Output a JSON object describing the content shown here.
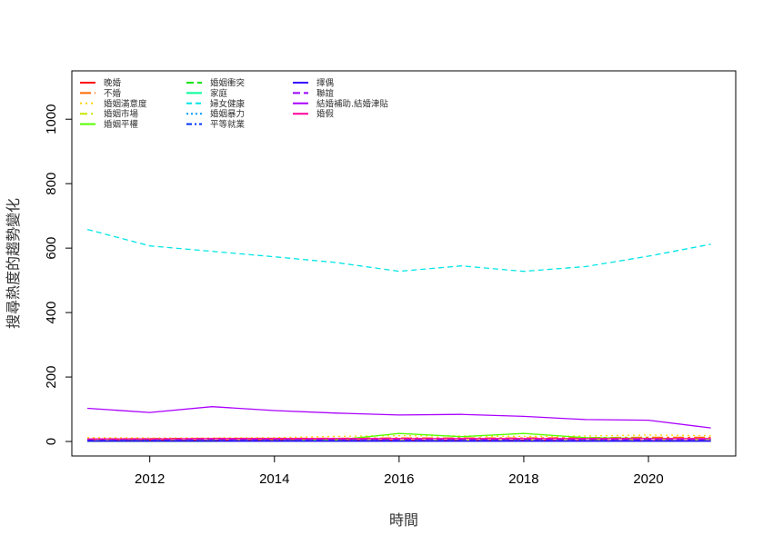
{
  "chart_data": {
    "type": "line",
    "xlabel": "時間",
    "ylabel": "搜尋熱度的趨勢變化",
    "xlim": [
      2010.75,
      2021.4
    ],
    "ylim": [
      -45,
      1150
    ],
    "x_ticks": [
      2012,
      2014,
      2016,
      2018,
      2020
    ],
    "y_ticks": [
      0,
      200,
      400,
      600,
      800,
      1000
    ],
    "x": [
      2011,
      2012,
      2013,
      2014,
      2015,
      2016,
      2017,
      2018,
      2019,
      2020,
      2021
    ],
    "legend_position": "top-left",
    "grid": false,
    "series": [
      {
        "name": "晚婚",
        "color": "#FF0000",
        "dash": "solid",
        "values": [
          3,
          4,
          4,
          5,
          5,
          4,
          4,
          4,
          3,
          3,
          3
        ]
      },
      {
        "name": "不婚",
        "color": "#FF6A00",
        "dash": "12,4,3,4",
        "values": [
          8,
          9,
          10,
          10,
          10,
          11,
          11,
          11,
          12,
          13,
          13
        ]
      },
      {
        "name": "婚姻滿意度",
        "color": "#FFD400",
        "dash": "2,4",
        "values": [
          12,
          11,
          11,
          12,
          16,
          18,
          17,
          16,
          17,
          20,
          18
        ]
      },
      {
        "name": "婚姻市場",
        "color": "#C8E600",
        "dash": "8,4,2,4",
        "values": [
          2,
          3,
          3,
          3,
          4,
          4,
          4,
          4,
          5,
          5,
          5
        ]
      },
      {
        "name": "婚姻平權",
        "color": "#55FF00",
        "dash": "solid",
        "values": [
          0,
          0,
          0,
          2,
          5,
          25,
          15,
          25,
          12,
          10,
          8
        ]
      },
      {
        "name": "婚姻衝突",
        "color": "#00E600",
        "dash": "8,4",
        "values": [
          4,
          4,
          5,
          5,
          5,
          5,
          5,
          5,
          5,
          5,
          5
        ]
      },
      {
        "name": "家庭",
        "color": "#00FF99",
        "dash": "solid",
        "values": [
          1,
          1,
          1,
          1,
          1,
          1,
          1,
          1,
          1,
          1,
          1
        ]
      },
      {
        "name": "婦女健康",
        "color": "#00E5E5",
        "dash": "6,4",
        "values": [
          658,
          607,
          590,
          573,
          555,
          528,
          545,
          528,
          543,
          575,
          612
        ]
      },
      {
        "name": "婚姻暴力",
        "color": "#0099FF",
        "dash": "2,3",
        "values": [
          3,
          3,
          3,
          3,
          3,
          3,
          3,
          3,
          3,
          3,
          3
        ]
      },
      {
        "name": "平等就業",
        "color": "#0033FF",
        "dash": "6,3,2,3",
        "values": [
          2,
          2,
          2,
          2,
          2,
          2,
          2,
          2,
          2,
          2,
          2
        ]
      },
      {
        "name": "擇偶",
        "color": "#3300FF",
        "dash": "solid",
        "values": [
          1,
          1,
          1,
          1,
          1,
          1,
          1,
          1,
          1,
          1,
          1
        ]
      },
      {
        "name": "聯誼",
        "color": "#9900FF",
        "dash": "8,4",
        "values": [
          6,
          6,
          6,
          6,
          6,
          6,
          6,
          6,
          6,
          6,
          6
        ]
      },
      {
        "name": "結婚補助.結婚津貼",
        "color": "#AA00FF",
        "dash": "solid",
        "values": [
          103,
          90,
          108,
          96,
          88,
          82,
          84,
          78,
          68,
          66,
          42
        ]
      },
      {
        "name": "婚假",
        "color": "#FF0099",
        "dash": "solid",
        "values": [
          8,
          8,
          9,
          9,
          9,
          9,
          9,
          9,
          9,
          9,
          9
        ]
      }
    ]
  }
}
